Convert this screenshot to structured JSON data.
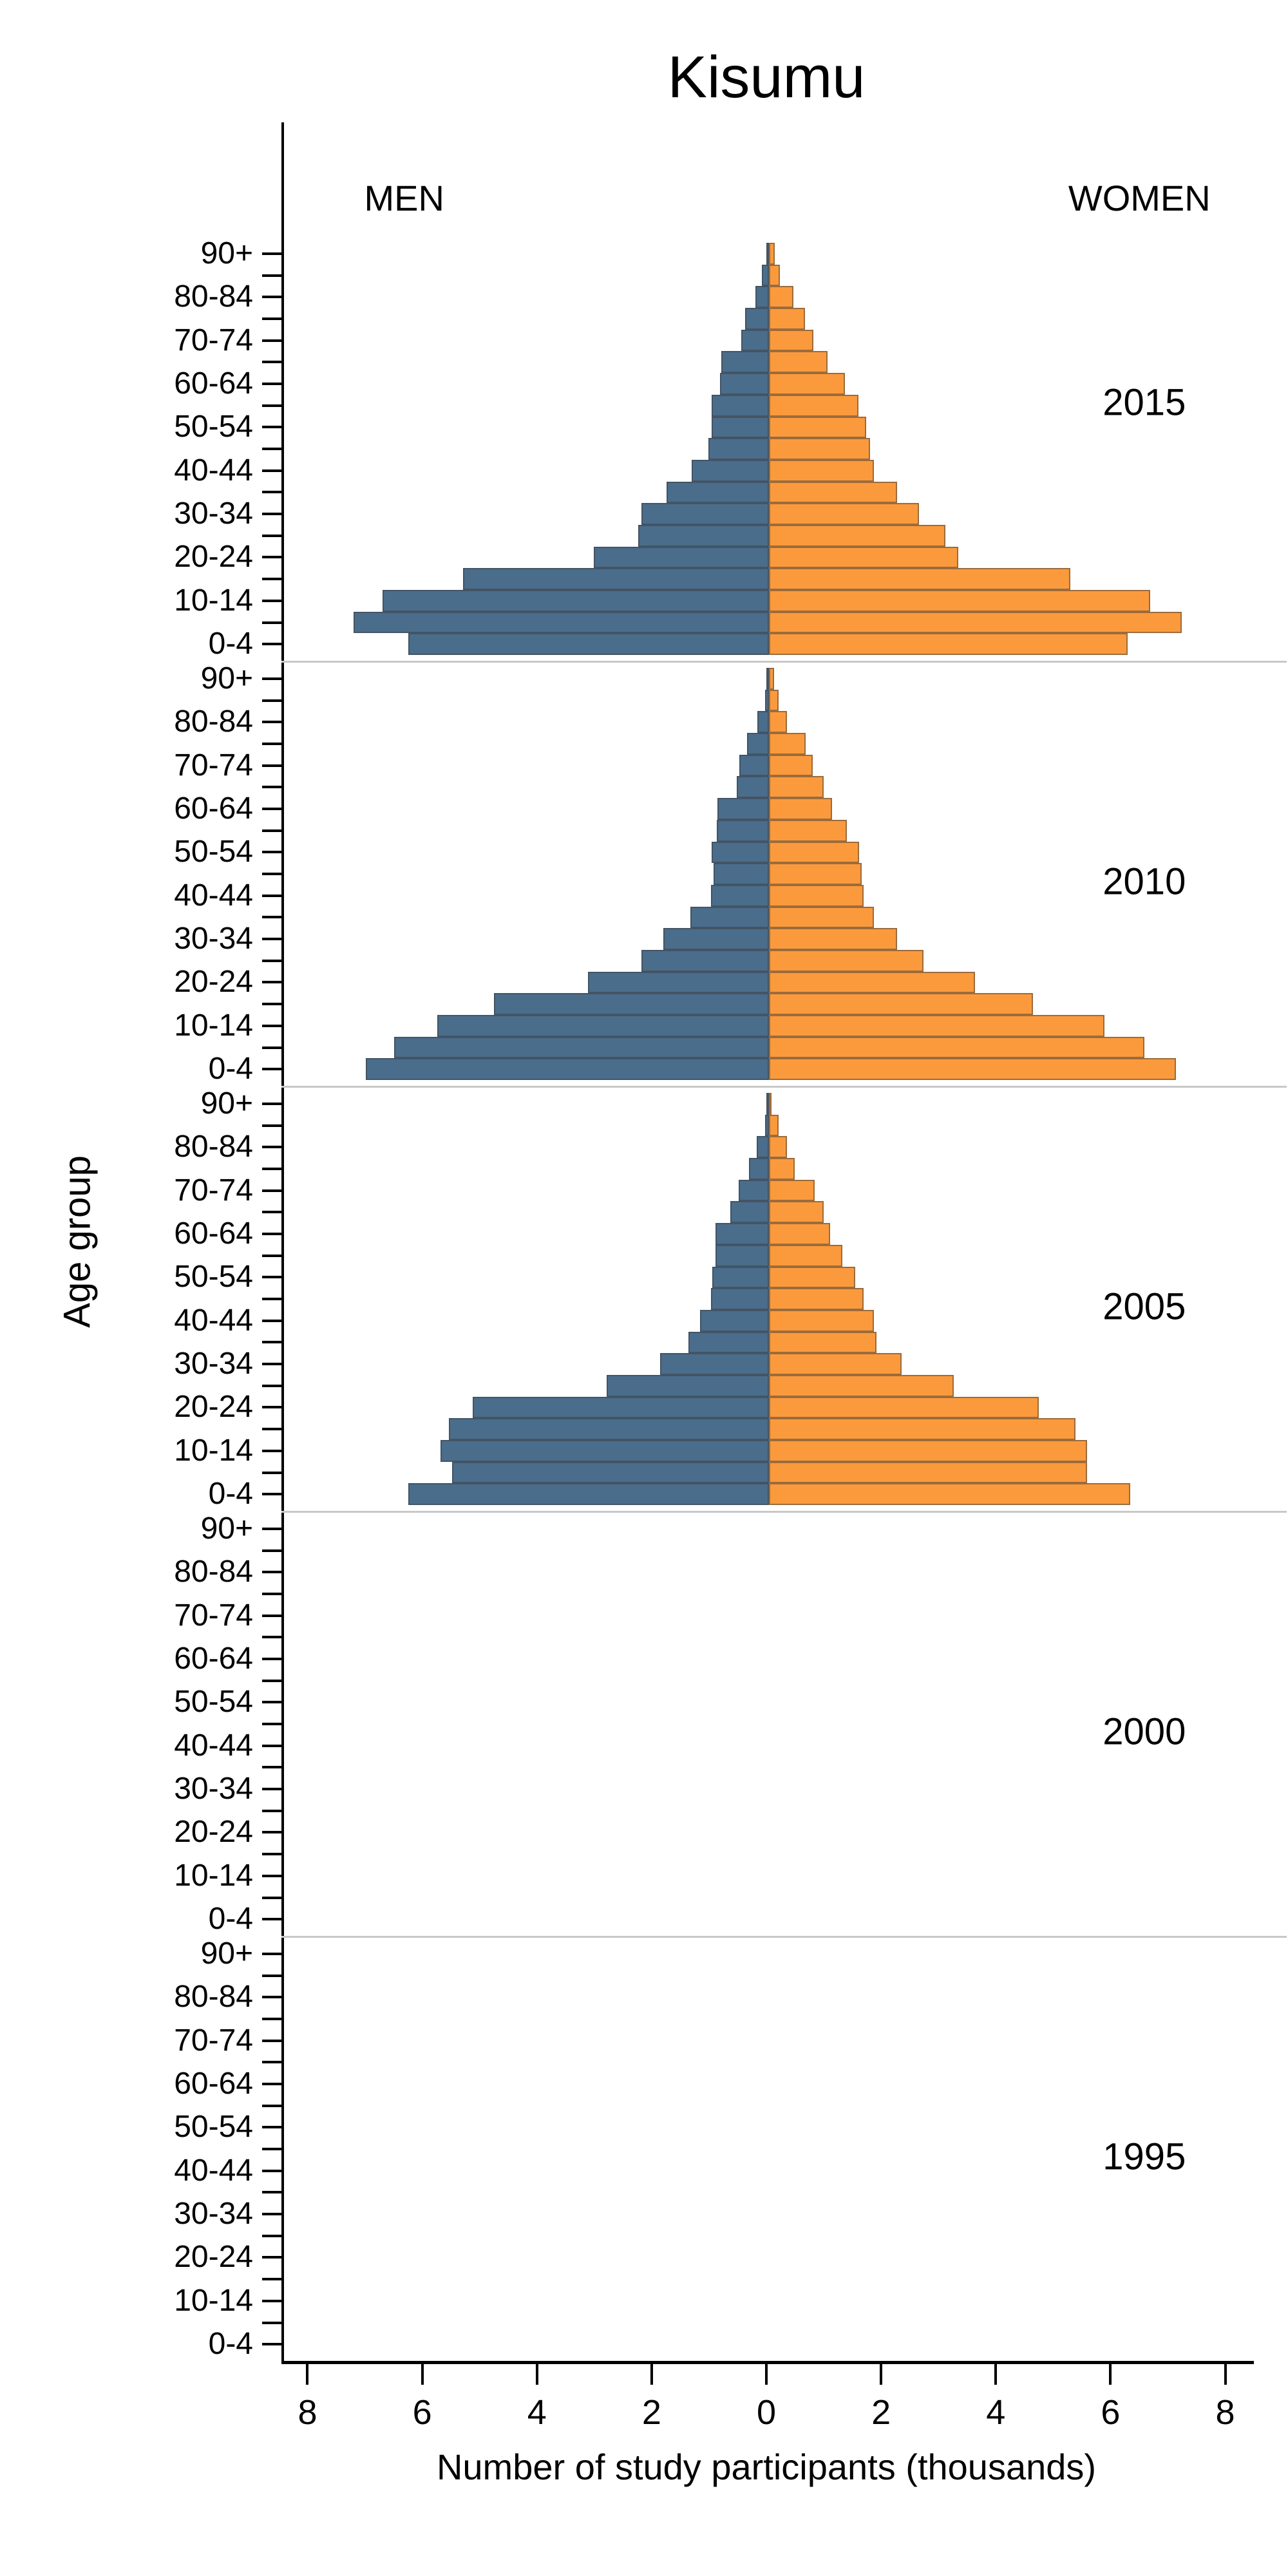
{
  "title": "Kisumu",
  "header": {
    "men_label": "MEN",
    "women_label": "WOMEN"
  },
  "y_axis": {
    "label": "Age group"
  },
  "x_axis": {
    "label": "Number of study participants (thousands)",
    "tick_values": [
      -8,
      -6,
      -4,
      -2,
      0,
      2,
      4,
      6,
      8
    ],
    "tick_labels": [
      "8",
      "6",
      "4",
      "2",
      "0",
      "2",
      "4",
      "6",
      "8"
    ]
  },
  "colors": {
    "men": "#4a6d8c",
    "women": "#fb9a3c",
    "separator": "#c8c8c8",
    "axis": "#000000"
  },
  "chart_data": {
    "type": "bar",
    "subtype": "population-pyramid",
    "unit": "thousands of study participants",
    "x_range": [
      -8,
      8
    ],
    "grid": false,
    "age_groups_top_to_bottom": [
      "90+",
      "85-89",
      "80-84",
      "75-79",
      "70-74",
      "65-69",
      "60-64",
      "55-59",
      "50-54",
      "45-49",
      "40-44",
      "35-39",
      "30-34",
      "25-29",
      "20-24",
      "15-19",
      "10-14",
      "5-9",
      "0-4"
    ],
    "labeled_ticks": [
      "90+",
      "80-84",
      "70-74",
      "60-64",
      "50-54",
      "40-44",
      "30-34",
      "20-24",
      "10-14",
      "0-4"
    ],
    "panels": [
      {
        "year": "2015",
        "men": [
          0.05,
          0.12,
          0.24,
          0.41,
          0.48,
          0.83,
          0.85,
          1.0,
          1.0,
          1.05,
          1.35,
          1.78,
          2.22,
          2.28,
          3.05,
          5.33,
          6.74,
          7.24,
          6.29
        ],
        "women": [
          0.1,
          0.19,
          0.43,
          0.63,
          0.77,
          1.02,
          1.33,
          1.56,
          1.69,
          1.76,
          1.83,
          2.23,
          2.62,
          3.08,
          3.3,
          5.25,
          6.65,
          7.2,
          6.25
        ]
      },
      {
        "year": "2010",
        "men": [
          0.03,
          0.07,
          0.2,
          0.38,
          0.52,
          0.56,
          0.9,
          0.91,
          1.0,
          0.97,
          1.01,
          1.37,
          1.84,
          2.22,
          3.15,
          4.8,
          5.78,
          6.54,
          7.03
        ],
        "women": [
          0.09,
          0.17,
          0.31,
          0.64,
          0.76,
          0.95,
          1.1,
          1.36,
          1.57,
          1.62,
          1.65,
          1.83,
          2.23,
          2.7,
          3.59,
          4.6,
          5.85,
          6.55,
          7.1
        ]
      },
      {
        "year": "2005",
        "men": [
          0.02,
          0.07,
          0.21,
          0.35,
          0.53,
          0.67,
          0.93,
          0.93,
          0.99,
          1.01,
          1.2,
          1.4,
          1.9,
          2.83,
          5.17,
          5.58,
          5.73,
          5.52,
          6.29
        ],
        "women": [
          0.05,
          0.17,
          0.31,
          0.45,
          0.8,
          0.95,
          1.07,
          1.28,
          1.51,
          1.65,
          1.83,
          1.88,
          2.31,
          3.22,
          4.71,
          5.34,
          5.55,
          5.55,
          6.3
        ]
      },
      {
        "year": "2000",
        "men": [],
        "women": []
      },
      {
        "year": "1995",
        "men": [],
        "women": []
      }
    ]
  }
}
